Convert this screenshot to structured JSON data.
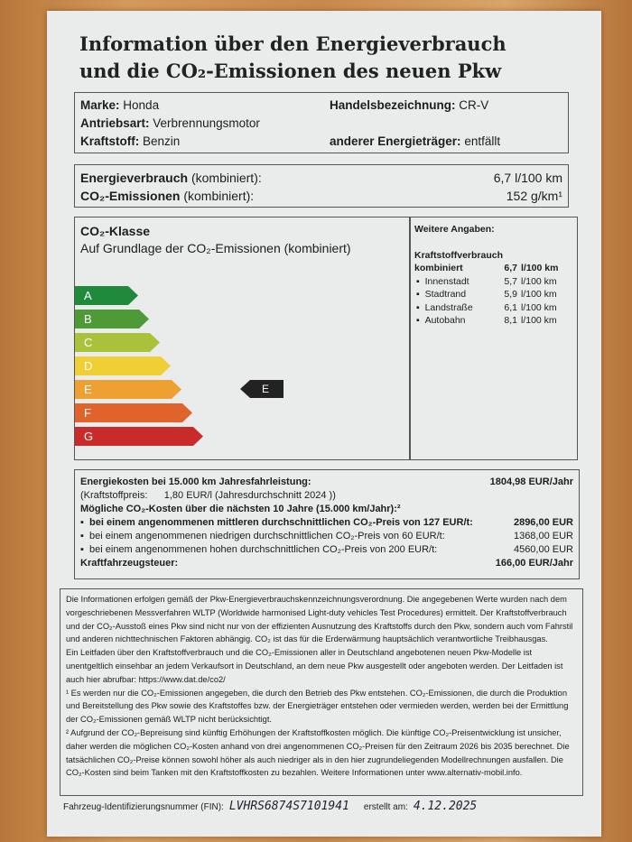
{
  "title": [
    "Information über den Energieverbrauch",
    "und die CO₂-Emissionen des neuen Pkw"
  ],
  "vehicle": {
    "marke_label": "Marke:",
    "marke": "Honda",
    "antrieb_label": "Antriebsart:",
    "antrieb": "Verbrennungsmotor",
    "kraftstoff_label": "Kraftstoff:",
    "kraftstoff": "Benzin",
    "handel_label": "Handelsbezeichnung:",
    "handel": "CR-V",
    "andere_label": "anderer Energieträger:",
    "andere": "entfällt"
  },
  "consumption": {
    "energie_label": "Energieverbrauch",
    "energie_suffix": " (kombiniert):",
    "energie": "6,7 l/100 km",
    "co2_label": "CO₂-Emissionen",
    "co2_suffix": " (kombiniert):",
    "co2": "152 g/km¹"
  },
  "co2_class": {
    "heading": "CO₂-Klasse",
    "subheading": "Auf Grundlage der CO₂-Emissionen (kombiniert)",
    "classes": [
      "A",
      "B",
      "C",
      "D",
      "E",
      "F",
      "G"
    ],
    "colors": [
      "#1f8a3c",
      "#4e9a36",
      "#a9c23a",
      "#efcf33",
      "#eea033",
      "#e0632b",
      "#c92a2a"
    ],
    "current": "E"
  },
  "further": {
    "heading": "Weitere Angaben:",
    "sub": "Kraftstoffverbrauch",
    "combined_label": "kombiniert",
    "combined_value": "6,7",
    "combined_unit": "l/100 km",
    "rows": [
      {
        "name": "Innenstadt",
        "value": "5,7",
        "unit": "l/100 km"
      },
      {
        "name": "Stadtrand",
        "value": "5,9",
        "unit": "l/100 km"
      },
      {
        "name": "Landstraße",
        "value": "6,1",
        "unit": "l/100 km"
      },
      {
        "name": "Autobahn",
        "value": "8,1",
        "unit": "l/100 km"
      }
    ]
  },
  "costs": {
    "energy_label": "Energiekosten bei 15.000 km Jahresfahrleistung:",
    "energy_value": "1804,98 EUR/Jahr",
    "price_label": "(Kraftstoffpreis:",
    "price_value": "1,80 EUR/l (Jahresdurchschnitt 2024 ))",
    "co2_heading": "Mögliche CO₂-Kosten über die nächsten 10 Jahre (15.000 km/Jahr):²",
    "scenarios": [
      {
        "text": "bei einem angenommenen mittleren durchschnittlichen CO₂-Preis von  127  EUR/t:",
        "value": "2896,00 EUR"
      },
      {
        "text": "bei einem angenommenen niedrigen durchschnittlichen CO₂-Preis von   60  EUR/t:",
        "value": "1368,00 EUR"
      },
      {
        "text": "bei einem angenommenen hohen durchschnittlichen CO₂-Preis von  200  EUR/t:",
        "value": "4560,00 EUR"
      }
    ],
    "tax_label": "Kraftfahrzeugsteuer:",
    "tax_value": "166,00 EUR/Jahr"
  },
  "notes": [
    "Die Informationen erfolgen gemäß der Pkw-Energieverbrauchskennzeichnungsverordnung. Die angegebenen Werte wurden nach dem vorgeschriebenen Messverfahren WLTP (Worldwide harmonised Light-duty vehicles Test Procedures) ermittelt. Der Kraftstoffverbrauch und der CO₂-Ausstoß eines Pkw sind nicht nur von der effizienten Ausnutzung des Kraftstoffs durch den Pkw, sondern auch vom Fahrstil und anderen nichttechnischen Faktoren abhängig. CO₂ ist das für die Erderwärmung hauptsächlich verantwortliche Treibhausgas.",
    "Ein Leitfaden über den Kraftstoffverbrauch und die CO₂-Emissionen aller in Deutschland angebotenen neuen Pkw-Modelle ist unentgeltlich einsehbar an jedem Verkaufsort in Deutschland, an dem neue Pkw ausgestellt oder angeboten werden. Der Leitfaden ist auch hier abrufbar:  https://www.dat.de/co2/",
    "¹ Es werden nur die CO₂-Emissionen angegeben, die durch den Betrieb des Pkw entstehen. CO₂-Emissionen, die durch die Produktion und Bereitstellung des Pkw sowie des Kraftstoffes bzw. der Energieträger entstehen oder vermieden werden, werden bei der Ermittlung der CO₂-Emissionen gemäß WLTP nicht berücksichtigt.",
    "² Aufgrund der CO₂-Bepreisung sind künftig Erhöhungen der Kraftstoffkosten möglich. Die künftige CO₂-Preisentwicklung ist unsicher, daher werden die möglichen CO₂-Kosten anhand von drei angenommenen CO₂-Preisen für den Zeitraum  2026  bis  2035  berechnet. Die tatsächlichen CO₂-Preise können sowohl höher als auch niedriger als in den hier zugrundeliegenden Modellrechnungen ausfallen. Die CO₂-Kosten sind beim Tanken mit den Kraftstoffkosten zu bezahlen. Weitere Informationen unter www.alternativ-mobil.info."
  ],
  "footer": {
    "fin_label": "Fahrzeug-Identifizierungsnummer (FIN):",
    "fin": "LVHRS6874S7101941",
    "date_label": "erstellt am:",
    "date": "4.12.2025"
  }
}
